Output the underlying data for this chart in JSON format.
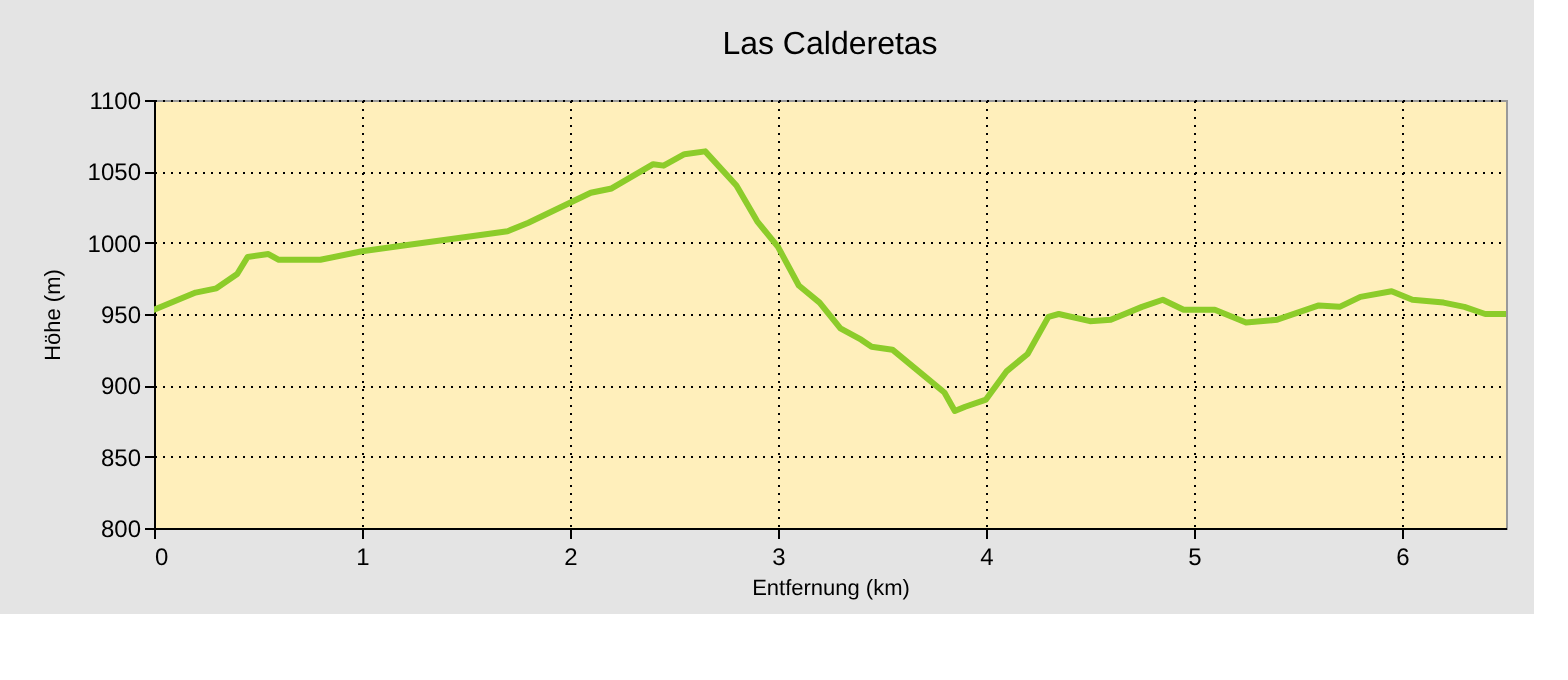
{
  "chart_data": {
    "type": "line",
    "title": "Las Calderetas",
    "xlabel": "Entfernung (km)",
    "ylabel": "Höhe (m)",
    "x": [
      0,
      0.2,
      0.3,
      0.4,
      0.45,
      0.55,
      0.6,
      0.8,
      1.0,
      1.2,
      1.5,
      1.7,
      1.8,
      2.0,
      2.1,
      2.2,
      2.4,
      2.45,
      2.55,
      2.65,
      2.8,
      2.9,
      3.0,
      3.1,
      3.2,
      3.3,
      3.4,
      3.45,
      3.55,
      3.7,
      3.8,
      3.85,
      3.9,
      4.0,
      4.1,
      4.2,
      4.3,
      4.35,
      4.5,
      4.6,
      4.75,
      4.85,
      4.95,
      5.1,
      5.25,
      5.4,
      5.6,
      5.7,
      5.8,
      5.95,
      6.05,
      6.2,
      6.3,
      6.4,
      6.5
    ],
    "series": [
      {
        "color": "#8ccc2a",
        "values": [
          953,
          965,
          968,
          978,
          990,
          992,
          988,
          988,
          994,
          998,
          1004,
          1008,
          1014,
          1028,
          1035,
          1038,
          1055,
          1054,
          1062,
          1064,
          1040,
          1015,
          997,
          970,
          958,
          940,
          932,
          927,
          925,
          907,
          895,
          882,
          885,
          890,
          910,
          922,
          948,
          950,
          945,
          946,
          955,
          960,
          953,
          953,
          944,
          946,
          956,
          955,
          962,
          966,
          960,
          958,
          955,
          950,
          950
        ]
      }
    ],
    "xlim": [
      0,
      6.5
    ],
    "xticks": [
      0,
      1,
      2,
      3,
      4,
      5,
      6
    ],
    "ylim": [
      800,
      1100
    ],
    "yticks": [
      800,
      850,
      900,
      950,
      1000,
      1050,
      1100
    ],
    "grid": true,
    "marker": "none",
    "line_style": "solid"
  }
}
